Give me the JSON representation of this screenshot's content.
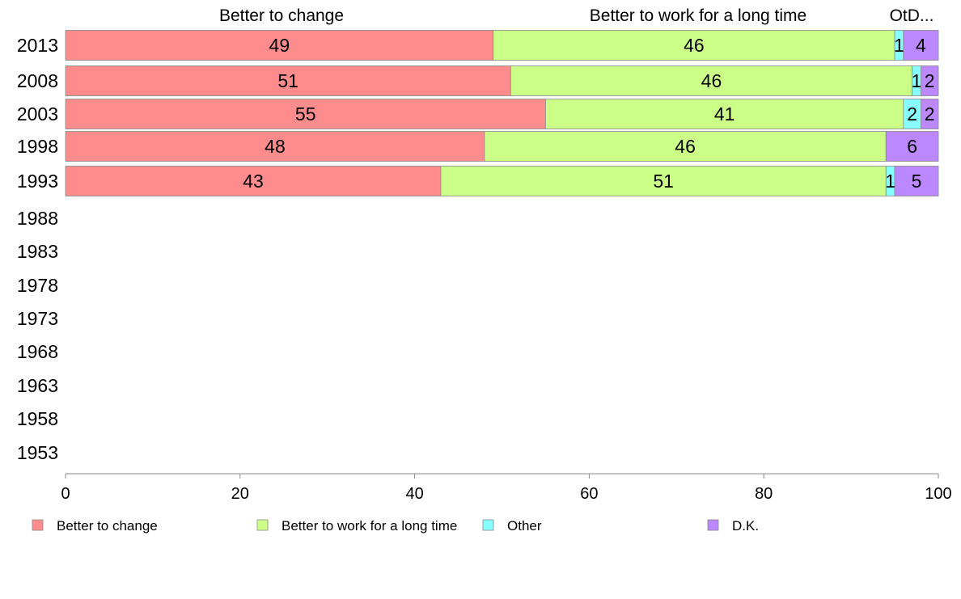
{
  "chart_data": {
    "type": "bar",
    "orientation": "horizontal",
    "stacked": true,
    "column_headers": [
      "Better to change",
      "Better to work for a long time",
      "OtD..."
    ],
    "categories": [
      "2013",
      "2008",
      "2003",
      "1998",
      "1993",
      "1988",
      "1983",
      "1978",
      "1973",
      "1968",
      "1963",
      "1958",
      "1953"
    ],
    "series": [
      {
        "name": "Better to change",
        "color": "#ff8c8c",
        "values": [
          49,
          51,
          55,
          48,
          43,
          null,
          null,
          null,
          null,
          null,
          null,
          null,
          null
        ]
      },
      {
        "name": "Better to work for a long time",
        "color": "#ccff88",
        "values": [
          46,
          46,
          41,
          46,
          51,
          null,
          null,
          null,
          null,
          null,
          null,
          null,
          null
        ]
      },
      {
        "name": "Other",
        "color": "#88ffff",
        "values": [
          1,
          1,
          2,
          0,
          1,
          null,
          null,
          null,
          null,
          null,
          null,
          null,
          null
        ]
      },
      {
        "name": "D.K.",
        "color": "#bb88ff",
        "values": [
          4,
          2,
          2,
          6,
          5,
          null,
          null,
          null,
          null,
          null,
          null,
          null,
          null
        ]
      }
    ],
    "xlim": [
      0,
      100
    ],
    "x_ticks": [
      0,
      20,
      40,
      60,
      80,
      100
    ],
    "grid": false,
    "legend_position": "bottom"
  }
}
